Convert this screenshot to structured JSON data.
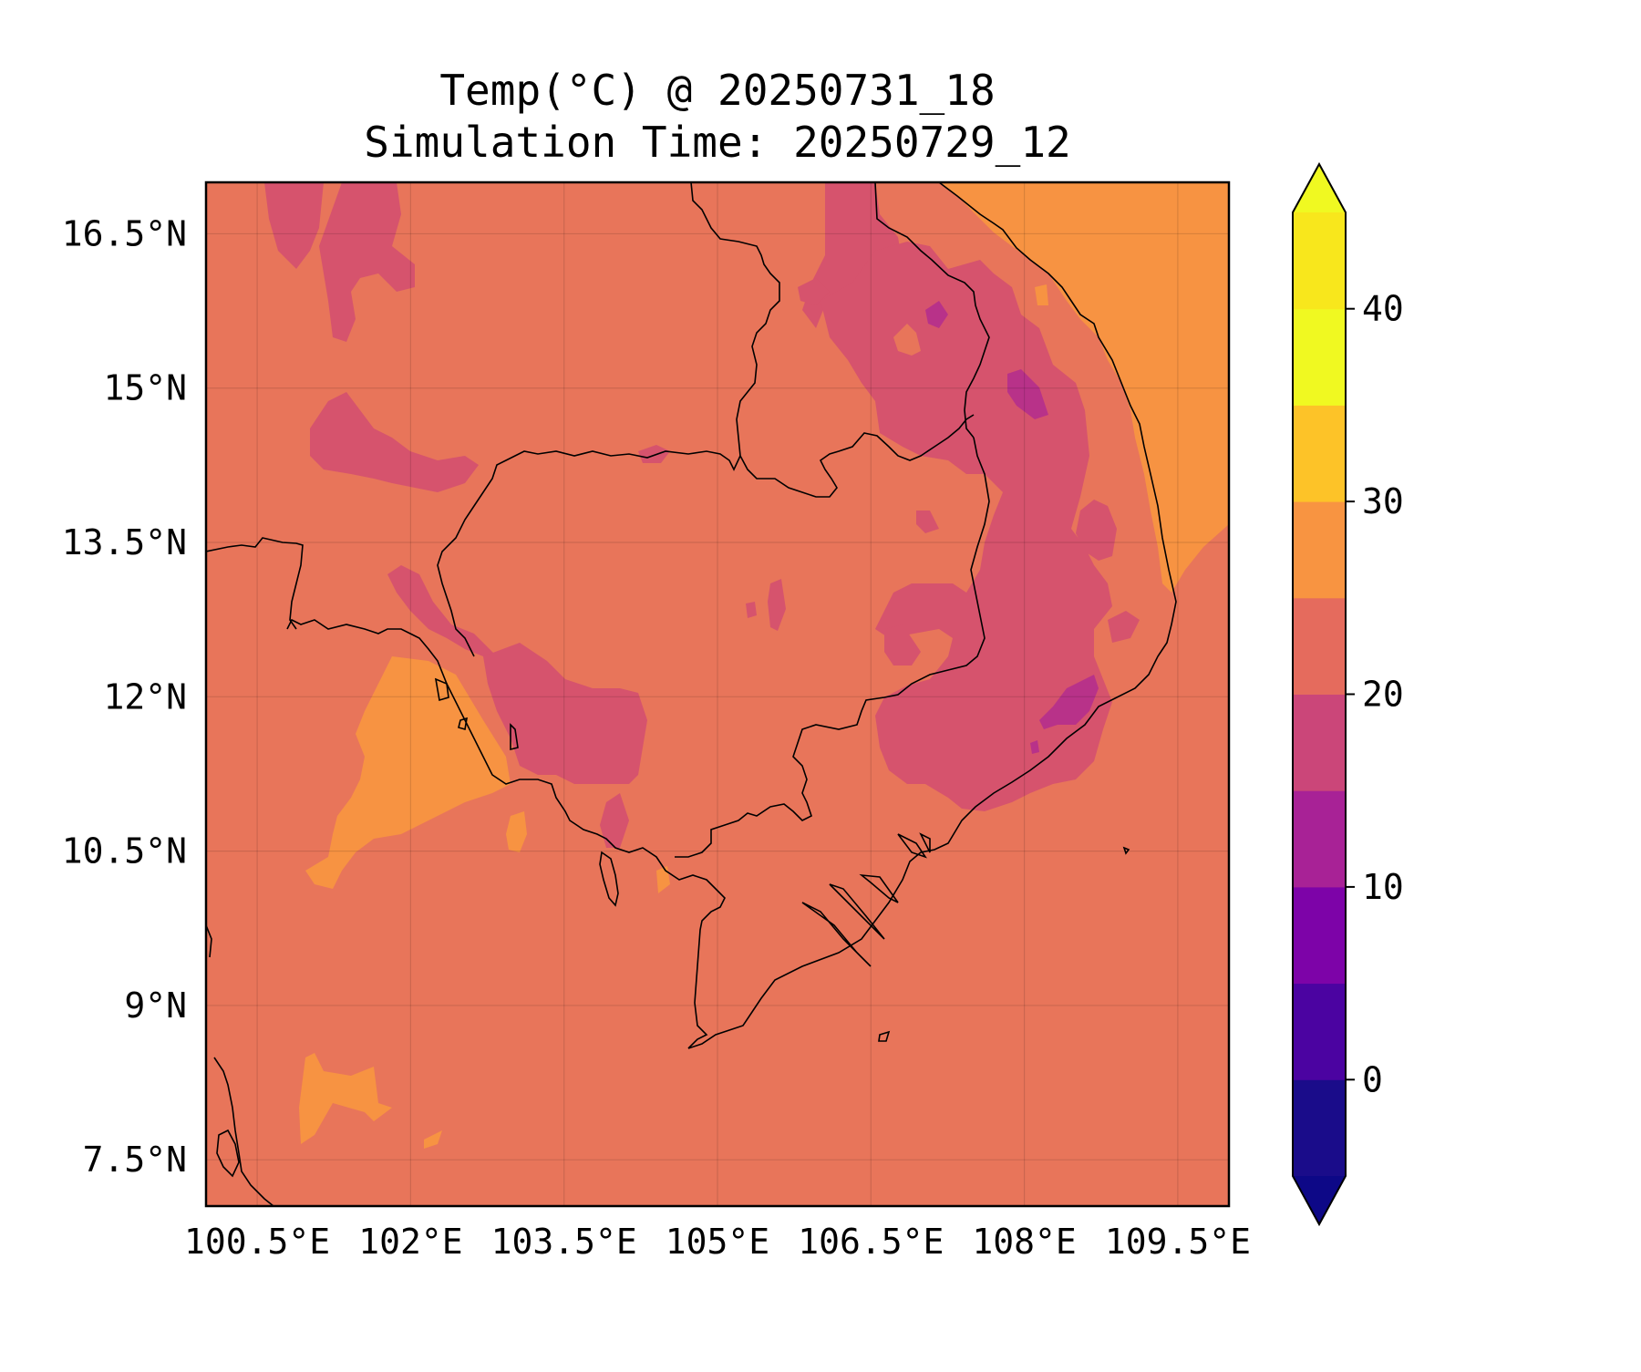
{
  "title": {
    "line1": "Temp(°C) @ 20250731_18",
    "line2": "Simulation Time: 20250729_12"
  },
  "map": {
    "lon_range": [
      100.0,
      110.0
    ],
    "lat_range": [
      7.05,
      17.0
    ],
    "x_ticks": [
      "100.5°E",
      "102°E",
      "103.5°E",
      "105°E",
      "106.5°E",
      "108°E",
      "109.5°E"
    ],
    "x_tick_values": [
      100.5,
      102.0,
      103.5,
      105.0,
      106.5,
      108.0,
      109.5
    ],
    "y_ticks": [
      "16.5°N",
      "15°N",
      "13.5°N",
      "12°N",
      "10.5°N",
      "9°N",
      "7.5°N"
    ],
    "y_tick_values": [
      16.5,
      15.0,
      13.5,
      12.0,
      10.5,
      9.0,
      7.5
    ],
    "background_band": "25-30",
    "fill_colors": {
      "band_20_25": "#d6536d",
      "band_25_30": "#e8755a",
      "band_30_35": "#f79342",
      "band_15_20": "#b83289"
    }
  },
  "colorbar": {
    "levels": [
      -5,
      0,
      5,
      10,
      15,
      20,
      25,
      30,
      35,
      40,
      45
    ],
    "colors": [
      "#1a0c8a",
      "#4b03a1",
      "#7d03a8",
      "#a82296",
      "#cb4679",
      "#e56b5d",
      "#f89441",
      "#fdc328",
      "#f0f921",
      "#f8e71c"
    ],
    "under_color": "#0d0887",
    "over_color": "#f0f921",
    "tick_labels": [
      "0",
      "10",
      "20",
      "30",
      "40"
    ],
    "tick_values": [
      0,
      10,
      20,
      30,
      40
    ],
    "extend": "both"
  }
}
